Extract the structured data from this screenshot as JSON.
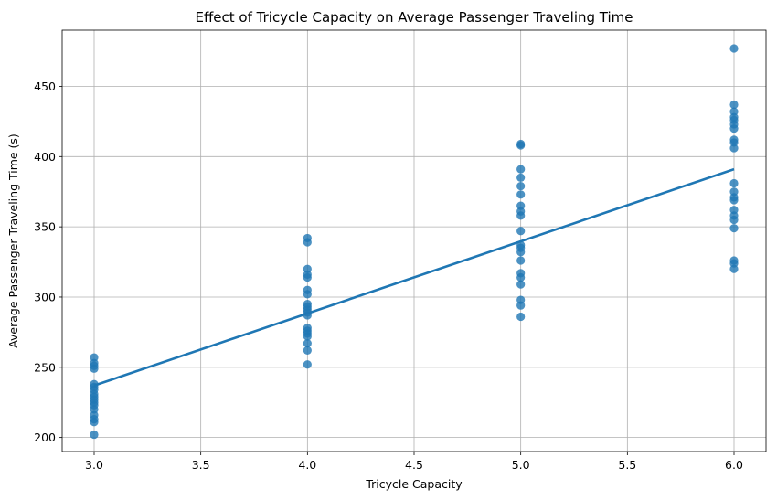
{
  "chart_data": {
    "type": "scatter",
    "title": "Effect of Tricycle Capacity on Average Passenger Traveling Time",
    "xlabel": "Tricycle Capacity",
    "ylabel": "Average Passenger Traveling Time (s)",
    "xlim": [
      2.85,
      6.15
    ],
    "ylim": [
      190,
      490
    ],
    "xticks": [
      3.0,
      3.5,
      4.0,
      4.5,
      5.0,
      5.5,
      6.0
    ],
    "xtick_labels": [
      "3.0",
      "3.5",
      "4.0",
      "4.5",
      "5.0",
      "5.5",
      "6.0"
    ],
    "yticks": [
      200,
      250,
      300,
      350,
      400,
      450
    ],
    "ytick_labels": [
      "200",
      "250",
      "300",
      "350",
      "400",
      "450"
    ],
    "grid": true,
    "color": "#1f77b4",
    "points": [
      {
        "x": 3,
        "y": 202
      },
      {
        "x": 3,
        "y": 211
      },
      {
        "x": 3,
        "y": 213
      },
      {
        "x": 3,
        "y": 216
      },
      {
        "x": 3,
        "y": 220
      },
      {
        "x": 3,
        "y": 223
      },
      {
        "x": 3,
        "y": 225
      },
      {
        "x": 3,
        "y": 227
      },
      {
        "x": 3,
        "y": 229
      },
      {
        "x": 3,
        "y": 231
      },
      {
        "x": 3,
        "y": 234
      },
      {
        "x": 3,
        "y": 236
      },
      {
        "x": 3,
        "y": 238
      },
      {
        "x": 3,
        "y": 249
      },
      {
        "x": 3,
        "y": 251
      },
      {
        "x": 3,
        "y": 253
      },
      {
        "x": 3,
        "y": 257
      },
      {
        "x": 4,
        "y": 252
      },
      {
        "x": 4,
        "y": 262
      },
      {
        "x": 4,
        "y": 267
      },
      {
        "x": 4,
        "y": 272
      },
      {
        "x": 4,
        "y": 274
      },
      {
        "x": 4,
        "y": 276
      },
      {
        "x": 4,
        "y": 278
      },
      {
        "x": 4,
        "y": 287
      },
      {
        "x": 4,
        "y": 289
      },
      {
        "x": 4,
        "y": 291
      },
      {
        "x": 4,
        "y": 293
      },
      {
        "x": 4,
        "y": 295
      },
      {
        "x": 4,
        "y": 302
      },
      {
        "x": 4,
        "y": 305
      },
      {
        "x": 4,
        "y": 314
      },
      {
        "x": 4,
        "y": 316
      },
      {
        "x": 4,
        "y": 320
      },
      {
        "x": 4,
        "y": 339
      },
      {
        "x": 4,
        "y": 342
      },
      {
        "x": 5,
        "y": 286
      },
      {
        "x": 5,
        "y": 294
      },
      {
        "x": 5,
        "y": 298
      },
      {
        "x": 5,
        "y": 309
      },
      {
        "x": 5,
        "y": 314
      },
      {
        "x": 5,
        "y": 317
      },
      {
        "x": 5,
        "y": 326
      },
      {
        "x": 5,
        "y": 332
      },
      {
        "x": 5,
        "y": 335
      },
      {
        "x": 5,
        "y": 337
      },
      {
        "x": 5,
        "y": 347
      },
      {
        "x": 5,
        "y": 358
      },
      {
        "x": 5,
        "y": 361
      },
      {
        "x": 5,
        "y": 365
      },
      {
        "x": 5,
        "y": 373
      },
      {
        "x": 5,
        "y": 379
      },
      {
        "x": 5,
        "y": 385
      },
      {
        "x": 5,
        "y": 391
      },
      {
        "x": 5,
        "y": 408
      },
      {
        "x": 5,
        "y": 409
      },
      {
        "x": 6,
        "y": 320
      },
      {
        "x": 6,
        "y": 324
      },
      {
        "x": 6,
        "y": 326
      },
      {
        "x": 6,
        "y": 349
      },
      {
        "x": 6,
        "y": 355
      },
      {
        "x": 6,
        "y": 358
      },
      {
        "x": 6,
        "y": 362
      },
      {
        "x": 6,
        "y": 369
      },
      {
        "x": 6,
        "y": 371
      },
      {
        "x": 6,
        "y": 375
      },
      {
        "x": 6,
        "y": 381
      },
      {
        "x": 6,
        "y": 406
      },
      {
        "x": 6,
        "y": 410
      },
      {
        "x": 6,
        "y": 412
      },
      {
        "x": 6,
        "y": 420
      },
      {
        "x": 6,
        "y": 423
      },
      {
        "x": 6,
        "y": 426
      },
      {
        "x": 6,
        "y": 428
      },
      {
        "x": 6,
        "y": 432
      },
      {
        "x": 6,
        "y": 437
      },
      {
        "x": 6,
        "y": 477
      }
    ],
    "regression_line": {
      "x": [
        3.0,
        6.0
      ],
      "y": [
        237,
        391
      ]
    }
  }
}
